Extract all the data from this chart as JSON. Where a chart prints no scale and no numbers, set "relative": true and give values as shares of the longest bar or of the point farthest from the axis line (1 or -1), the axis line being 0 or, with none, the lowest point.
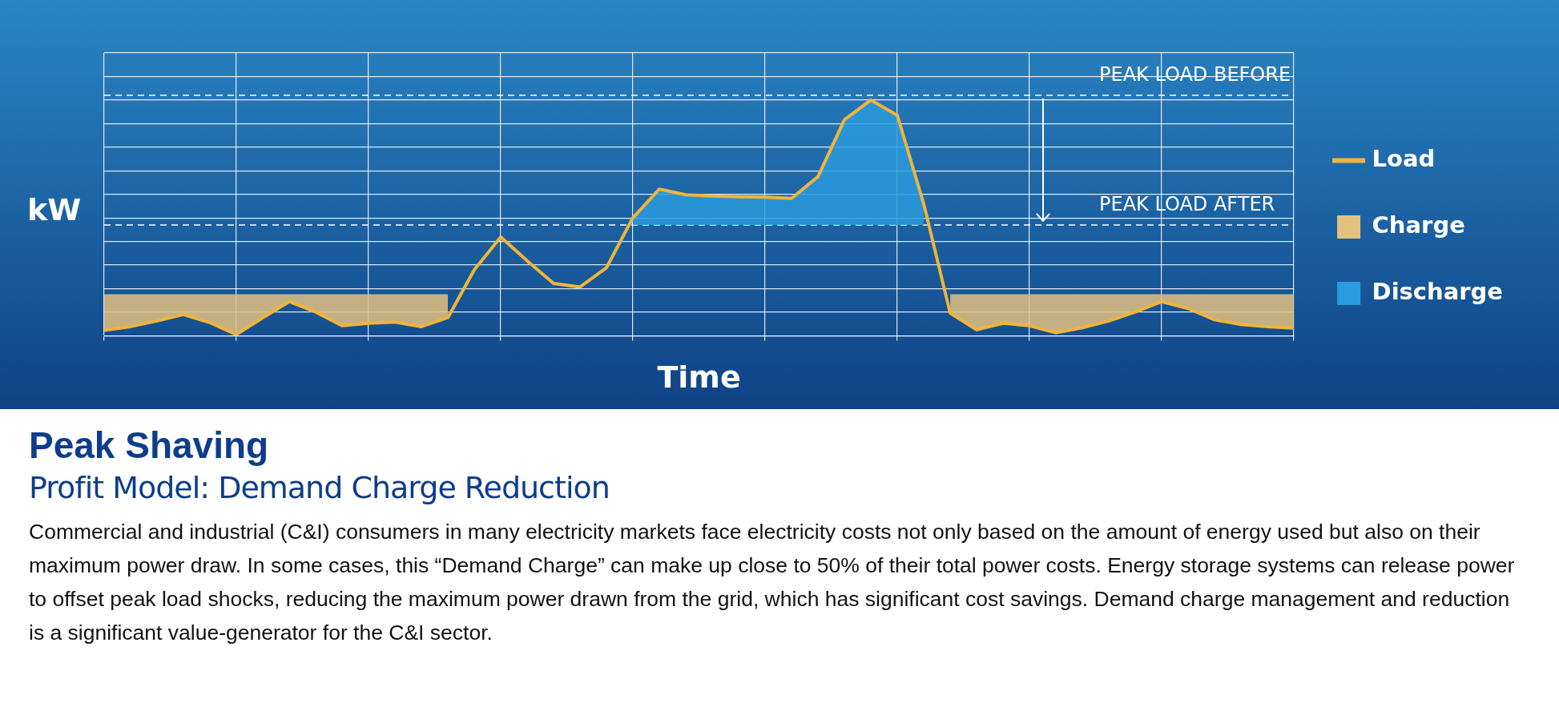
{
  "chart_data": {
    "type": "line",
    "relative": true,
    "xlabel": "Time",
    "ylabel": "kW",
    "title": "Peak Shaving",
    "subtitle": "Profit Model: Demand Charge Reduction",
    "categories": [
      null,
      null,
      null,
      null,
      null,
      null,
      null,
      null,
      null,
      null,
      null,
      null,
      null,
      null,
      null,
      null,
      null,
      null,
      null,
      null,
      null,
      null,
      null,
      null,
      null,
      null,
      null,
      null,
      null,
      null,
      null,
      null,
      null,
      null,
      null,
      null,
      null,
      null,
      null,
      null,
      null,
      null,
      null,
      null,
      null,
      null
    ],
    "grid": true,
    "legend": "right",
    "marker": "none",
    "series": [
      {
        "name": "Load",
        "type": "line",
        "color": "#f0b43c",
        "values": [
          0.023,
          0.039,
          0.063,
          0.09,
          0.056,
          0.005,
          0.077,
          0.145,
          0.101,
          0.043,
          0.053,
          0.058,
          0.039,
          0.077,
          0.28,
          0.419,
          0.318,
          0.222,
          0.207,
          0.289,
          0.501,
          0.622,
          0.598,
          0.593,
          0.59,
          0.588,
          0.583,
          0.675,
          0.916,
          1,
          0.935,
          0.559,
          0.096,
          0.026,
          0.053,
          0.043,
          0.013,
          0.034,
          0.063,
          0.101,
          0.145,
          0.116,
          0.068,
          0.048,
          0.039,
          0.033
        ]
      },
      {
        "name": "Charge",
        "type": "area",
        "color": "#e3c17f",
        "values": [
          0.176,
          0.176,
          0.176,
          0.176,
          0.176,
          0.176,
          0.176,
          0.176,
          0.176,
          0.176,
          0.176,
          0.176,
          0.176,
          0.176,
          null,
          null,
          null,
          null,
          null,
          null,
          null,
          null,
          null,
          null,
          null,
          null,
          null,
          null,
          null,
          null,
          null,
          null,
          0.176,
          0.176,
          0.176,
          0.176,
          0.176,
          0.176,
          0.176,
          0.176,
          0.176,
          0.176,
          0.176,
          0.176,
          0.176,
          0.176
        ]
      },
      {
        "name": "Discharge",
        "type": "area",
        "color": "#2a9bdc",
        "values": [
          null,
          null,
          null,
          null,
          null,
          null,
          null,
          null,
          null,
          null,
          null,
          null,
          null,
          null,
          null,
          null,
          null,
          null,
          null,
          null,
          0.501,
          0.622,
          0.598,
          0.593,
          0.59,
          0.588,
          0.583,
          0.675,
          0.916,
          1,
          0.935,
          0.559,
          null,
          null,
          null,
          null,
          null,
          null,
          null,
          null,
          null,
          null,
          null,
          null,
          null,
          null
        ]
      }
    ],
    "ref_lines": [
      {
        "axis": "y",
        "value": 1.02,
        "label": "PEAK LOAD BEFORE",
        "color": "#ffffff",
        "line_style": "dashed"
      },
      {
        "axis": "y",
        "value": 0.47,
        "label": "PEAK LOAD AFTER",
        "color": "#ffffff",
        "line_style": "dashed"
      }
    ],
    "annotations": [
      "Commercial and industrial (C&I) consumers in many electricity markets face electricity costs not only based on the amount of energy used but also on their maximum power draw. In some cases, this “Demand Charge” can make up close to 50% of their total power costs. Energy storage systems can release power to offset peak load shocks, reducing the maximum power drawn from the grid, which has significant cost savings. Demand charge management and reduction is a significant value-generator for the C&I sector."
    ]
  }
}
